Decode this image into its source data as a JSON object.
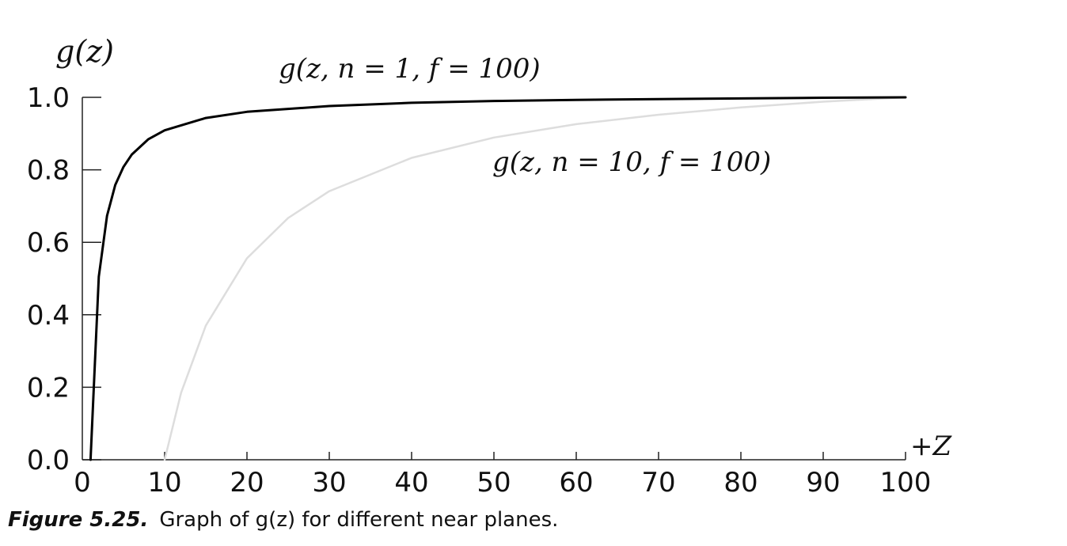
{
  "chart_data": {
    "type": "line",
    "ylabel": "g(z)",
    "xlabel": "+Z",
    "xlim": [
      0,
      100
    ],
    "ylim": [
      0,
      1
    ],
    "x_ticks": [
      "0",
      "10",
      "20",
      "30",
      "40",
      "50",
      "60",
      "70",
      "80",
      "90",
      "100"
    ],
    "y_ticks": [
      "0.0",
      "0.2",
      "0.4",
      "0.6",
      "0.8",
      "1.0"
    ],
    "grid": false,
    "series": [
      {
        "name": "g(z, n = 1, f = 100)",
        "color": "#000000",
        "x": [
          1,
          2,
          3,
          4,
          5,
          6,
          8,
          10,
          15,
          20,
          30,
          40,
          50,
          60,
          70,
          80,
          90,
          100
        ],
        "y": [
          0.0,
          0.505,
          0.673,
          0.758,
          0.808,
          0.842,
          0.884,
          0.909,
          0.943,
          0.96,
          0.976,
          0.985,
          0.99,
          0.993,
          0.995,
          0.997,
          0.999,
          1.0
        ]
      },
      {
        "name": "g(z, n = 10, f = 100)",
        "color": "#dddddd",
        "x": [
          10,
          12,
          15,
          20,
          25,
          30,
          40,
          50,
          60,
          70,
          80,
          90,
          100
        ],
        "y": [
          0.0,
          0.185,
          0.37,
          0.556,
          0.667,
          0.741,
          0.833,
          0.889,
          0.926,
          0.952,
          0.972,
          0.988,
          1.0
        ]
      }
    ]
  },
  "caption": {
    "lead": "Figure 5.25.",
    "text": "Graph of g(z) for different near planes."
  }
}
